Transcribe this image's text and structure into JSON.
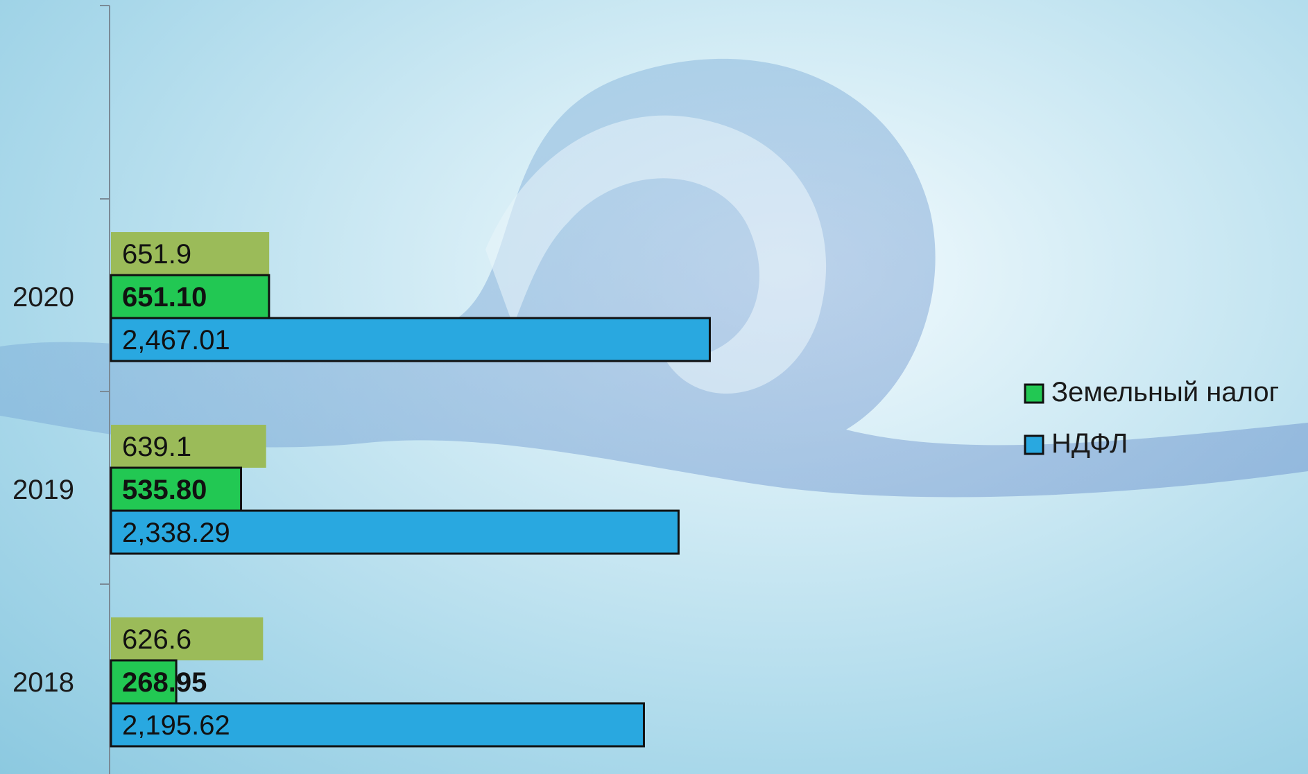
{
  "colors": {
    "series_1": "#9bbb59",
    "series_2": "#22c853",
    "series_3": "#29a8e0",
    "outline": "#111111",
    "axis": "#7a8a96"
  },
  "chart_data": {
    "type": "bar",
    "orientation": "horizontal",
    "title": "",
    "xlabel": "",
    "ylabel": "",
    "categories": [
      "2018",
      "2019",
      "2020"
    ],
    "series": [
      {
        "name": "",
        "values": [
          626.6,
          639.1,
          651.9
        ],
        "labels": [
          "626.6",
          "639.1",
          "651.9"
        ],
        "color": "#9bbb59",
        "bold": false,
        "outlined": false
      },
      {
        "name": "Земельный налог",
        "values": [
          268.95,
          535.8,
          651.1
        ],
        "labels": [
          "268.95",
          "535.80",
          "651.10"
        ],
        "color": "#22c853",
        "bold": true,
        "outlined": true
      },
      {
        "name": "НДФЛ",
        "values": [
          2195.62,
          2338.29,
          2467.01
        ],
        "labels": [
          "2,195.62",
          "2,338.29",
          "2,467.01"
        ],
        "color": "#29a8e0",
        "bold": false,
        "outlined": true
      }
    ],
    "xlim": [
      0,
      3000
    ],
    "grid": false,
    "legend": {
      "position": "right",
      "entries": [
        "Земельный налог",
        "НДФЛ"
      ]
    }
  }
}
